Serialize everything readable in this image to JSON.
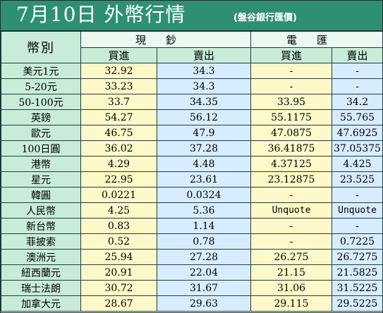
{
  "title": {
    "main": "7月10日 外幣行情",
    "source": "(盤谷銀行匯價)"
  },
  "table": {
    "currency_header": "幣別",
    "cash_header": "現鈔",
    "transfer_header": "電匯",
    "buy_label": "買進",
    "sell_label": "賣出",
    "rows": [
      {
        "name": "美元1元",
        "cash_buy": "32.92",
        "cash_sell": "34.3",
        "tt_buy": "-",
        "tt_sell": "-"
      },
      {
        "name": "5-20元",
        "cash_buy": "33.23",
        "cash_sell": "34.3",
        "tt_buy": "-",
        "tt_sell": "-"
      },
      {
        "name": "50-100元",
        "cash_buy": "33.7",
        "cash_sell": "34.35",
        "tt_buy": "33.95",
        "tt_sell": "34.2"
      },
      {
        "name": "英鎊",
        "cash_buy": "54.27",
        "cash_sell": "56.12",
        "tt_buy": "55.1175",
        "tt_sell": "55.765"
      },
      {
        "name": "歐元",
        "cash_buy": "46.75",
        "cash_sell": "47.9",
        "tt_buy": "47.0875",
        "tt_sell": "47.6925"
      },
      {
        "name": "100日圓",
        "cash_buy": "36.02",
        "cash_sell": "37.28",
        "tt_buy": "36.41875",
        "tt_sell": "37.05375"
      },
      {
        "name": "港幣",
        "cash_buy": "4.29",
        "cash_sell": "4.48",
        "tt_buy": "4.37125",
        "tt_sell": "4.425"
      },
      {
        "name": "星元",
        "cash_buy": "22.95",
        "cash_sell": "23.61",
        "tt_buy": "23.12875",
        "tt_sell": "23.525"
      },
      {
        "name": "韓圓",
        "cash_buy": "0.0221",
        "cash_sell": "0.0324",
        "tt_buy": "-",
        "tt_sell": "-"
      },
      {
        "name": "人民幣",
        "cash_buy": "4.25",
        "cash_sell": "5.36",
        "tt_buy": "Unquote",
        "tt_sell": "Unquote"
      },
      {
        "name": "新台幣",
        "cash_buy": "0.83",
        "cash_sell": "1.14",
        "tt_buy": "-",
        "tt_sell": "-"
      },
      {
        "name": "菲披索",
        "cash_buy": "0.52",
        "cash_sell": "0.78",
        "tt_buy": "-",
        "tt_sell": "0.7225"
      },
      {
        "name": "澳洲元",
        "cash_buy": "25.94",
        "cash_sell": "27.28",
        "tt_buy": "26.275",
        "tt_sell": "26.7275"
      },
      {
        "name": "紐西蘭元",
        "cash_buy": "20.91",
        "cash_sell": "22.04",
        "tt_buy": "21.15",
        "tt_sell": "21.5825"
      },
      {
        "name": "瑞士法朗",
        "cash_buy": "30.72",
        "cash_sell": "31.67",
        "tt_buy": "31.06",
        "tt_sell": "31.5225"
      },
      {
        "name": "加拿大元",
        "cash_buy": "28.67",
        "cash_sell": "29.63",
        "tt_buy": "29.115",
        "tt_sell": "29.5225"
      }
    ]
  },
  "colors": {
    "title_bar": "#2f8f74",
    "name_column": "#c8ecd8",
    "buy_column": "#fff8c8",
    "sell_column": "#d8ecff"
  }
}
